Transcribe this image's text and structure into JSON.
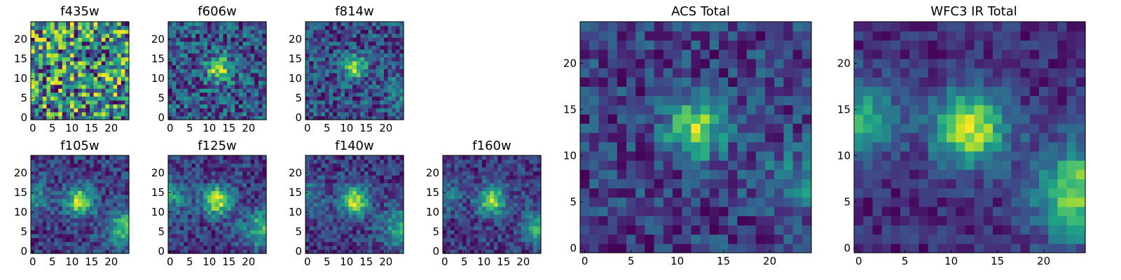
{
  "figure": {
    "colormap": "viridis",
    "colormap_stops": [
      "#440154",
      "#482878",
      "#3e4989",
      "#31688e",
      "#26828e",
      "#1f9e89",
      "#35b779",
      "#6ece58",
      "#b5de2b",
      "#fde725"
    ]
  },
  "chart_data": [
    {
      "type": "heatmap",
      "title": "f435w",
      "grid_size": [
        25,
        25
      ],
      "xlim": [
        0,
        24
      ],
      "ylim": [
        0,
        24
      ],
      "xticks": [
        0,
        5,
        10,
        15,
        20
      ],
      "yticks": [
        0,
        5,
        10,
        15,
        20
      ],
      "pattern": {
        "noise": 0.45,
        "blobs": []
      },
      "seed": 11
    },
    {
      "type": "heatmap",
      "title": "f606w",
      "grid_size": [
        25,
        25
      ],
      "xlim": [
        0,
        24
      ],
      "ylim": [
        0,
        24
      ],
      "xticks": [
        0,
        5,
        10,
        15,
        20
      ],
      "yticks": [
        0,
        5,
        10,
        15,
        20
      ],
      "pattern": {
        "noise": 0.35,
        "blobs": [
          [
            12.5,
            12.5,
            2.2,
            0.75
          ]
        ]
      },
      "seed": 23
    },
    {
      "type": "heatmap",
      "title": "f814w",
      "grid_size": [
        25,
        25
      ],
      "xlim": [
        0,
        24
      ],
      "ylim": [
        0,
        24
      ],
      "xticks": [
        0,
        5,
        10,
        15,
        20
      ],
      "yticks": [
        0,
        5,
        10,
        15,
        20
      ],
      "pattern": {
        "noise": 0.32,
        "blobs": [
          [
            12,
            13,
            2.0,
            0.8
          ],
          [
            24,
            7,
            2.5,
            0.3
          ]
        ]
      },
      "seed": 37
    },
    {
      "type": "heatmap",
      "title": "f105w",
      "grid_size": [
        25,
        25
      ],
      "xlim": [
        0,
        24
      ],
      "ylim": [
        0,
        24
      ],
      "xticks": [
        0,
        5,
        10,
        15,
        20
      ],
      "yticks": [
        0,
        5,
        10,
        15,
        20
      ],
      "pattern": {
        "noise": 0.18,
        "blobs": [
          [
            12,
            13,
            2.5,
            0.7
          ],
          [
            24,
            6,
            3.5,
            0.5
          ],
          [
            0,
            14,
            3.0,
            0.3
          ]
        ]
      },
      "seed": 41
    },
    {
      "type": "heatmap",
      "title": "f125w",
      "grid_size": [
        25,
        25
      ],
      "xlim": [
        0,
        24
      ],
      "ylim": [
        0,
        24
      ],
      "xticks": [
        0,
        5,
        10,
        15,
        20
      ],
      "yticks": [
        0,
        5,
        10,
        15,
        20
      ],
      "pattern": {
        "noise": 0.18,
        "blobs": [
          [
            12,
            13,
            2.6,
            0.7
          ],
          [
            24,
            6,
            3.5,
            0.5
          ],
          [
            0,
            14,
            3.0,
            0.35
          ]
        ]
      },
      "seed": 53
    },
    {
      "type": "heatmap",
      "title": "f140w",
      "grid_size": [
        25,
        25
      ],
      "xlim": [
        0,
        24
      ],
      "ylim": [
        0,
        24
      ],
      "xticks": [
        0,
        5,
        10,
        15,
        20
      ],
      "yticks": [
        0,
        5,
        10,
        15,
        20
      ],
      "pattern": {
        "noise": 0.18,
        "blobs": [
          [
            12,
            13,
            2.6,
            0.75
          ],
          [
            24,
            6,
            3.5,
            0.45
          ],
          [
            0,
            14,
            3.0,
            0.3
          ]
        ]
      },
      "seed": 67
    },
    {
      "type": "heatmap",
      "title": "f160w",
      "grid_size": [
        25,
        25
      ],
      "xlim": [
        0,
        24
      ],
      "ylim": [
        0,
        24
      ],
      "xticks": [
        0,
        5,
        10,
        15,
        20
      ],
      "yticks": [
        0,
        5,
        10,
        15,
        20
      ],
      "pattern": {
        "noise": 0.2,
        "blobs": [
          [
            12,
            13,
            2.6,
            0.75
          ],
          [
            24,
            6,
            3.0,
            0.5
          ],
          [
            0,
            14,
            2.8,
            0.35
          ]
        ]
      },
      "seed": 79
    },
    {
      "type": "heatmap",
      "title": "ACS Total",
      "grid_size": [
        25,
        25
      ],
      "xlim": [
        0,
        24
      ],
      "ylim": [
        0,
        24
      ],
      "xticks": [
        0,
        5,
        10,
        15,
        20
      ],
      "yticks": [
        0,
        5,
        10,
        15,
        20
      ],
      "pattern": {
        "noise": 0.25,
        "blobs": [
          [
            12,
            13,
            2.2,
            0.85
          ],
          [
            23,
            7,
            2.5,
            0.35
          ]
        ]
      },
      "seed": 91
    },
    {
      "type": "heatmap",
      "title": "WFC3 IR Total",
      "grid_size": [
        25,
        25
      ],
      "xlim": [
        0,
        24
      ],
      "ylim": [
        0,
        24
      ],
      "xticks": [
        0,
        5,
        10,
        15,
        20
      ],
      "yticks": [
        0,
        5,
        10,
        15,
        20
      ],
      "pattern": {
        "noise": 0.12,
        "blobs": [
          [
            12,
            13,
            2.8,
            0.75
          ],
          [
            24,
            6,
            3.5,
            0.65
          ],
          [
            0,
            14,
            3.0,
            0.45
          ]
        ]
      },
      "seed": 103
    }
  ]
}
